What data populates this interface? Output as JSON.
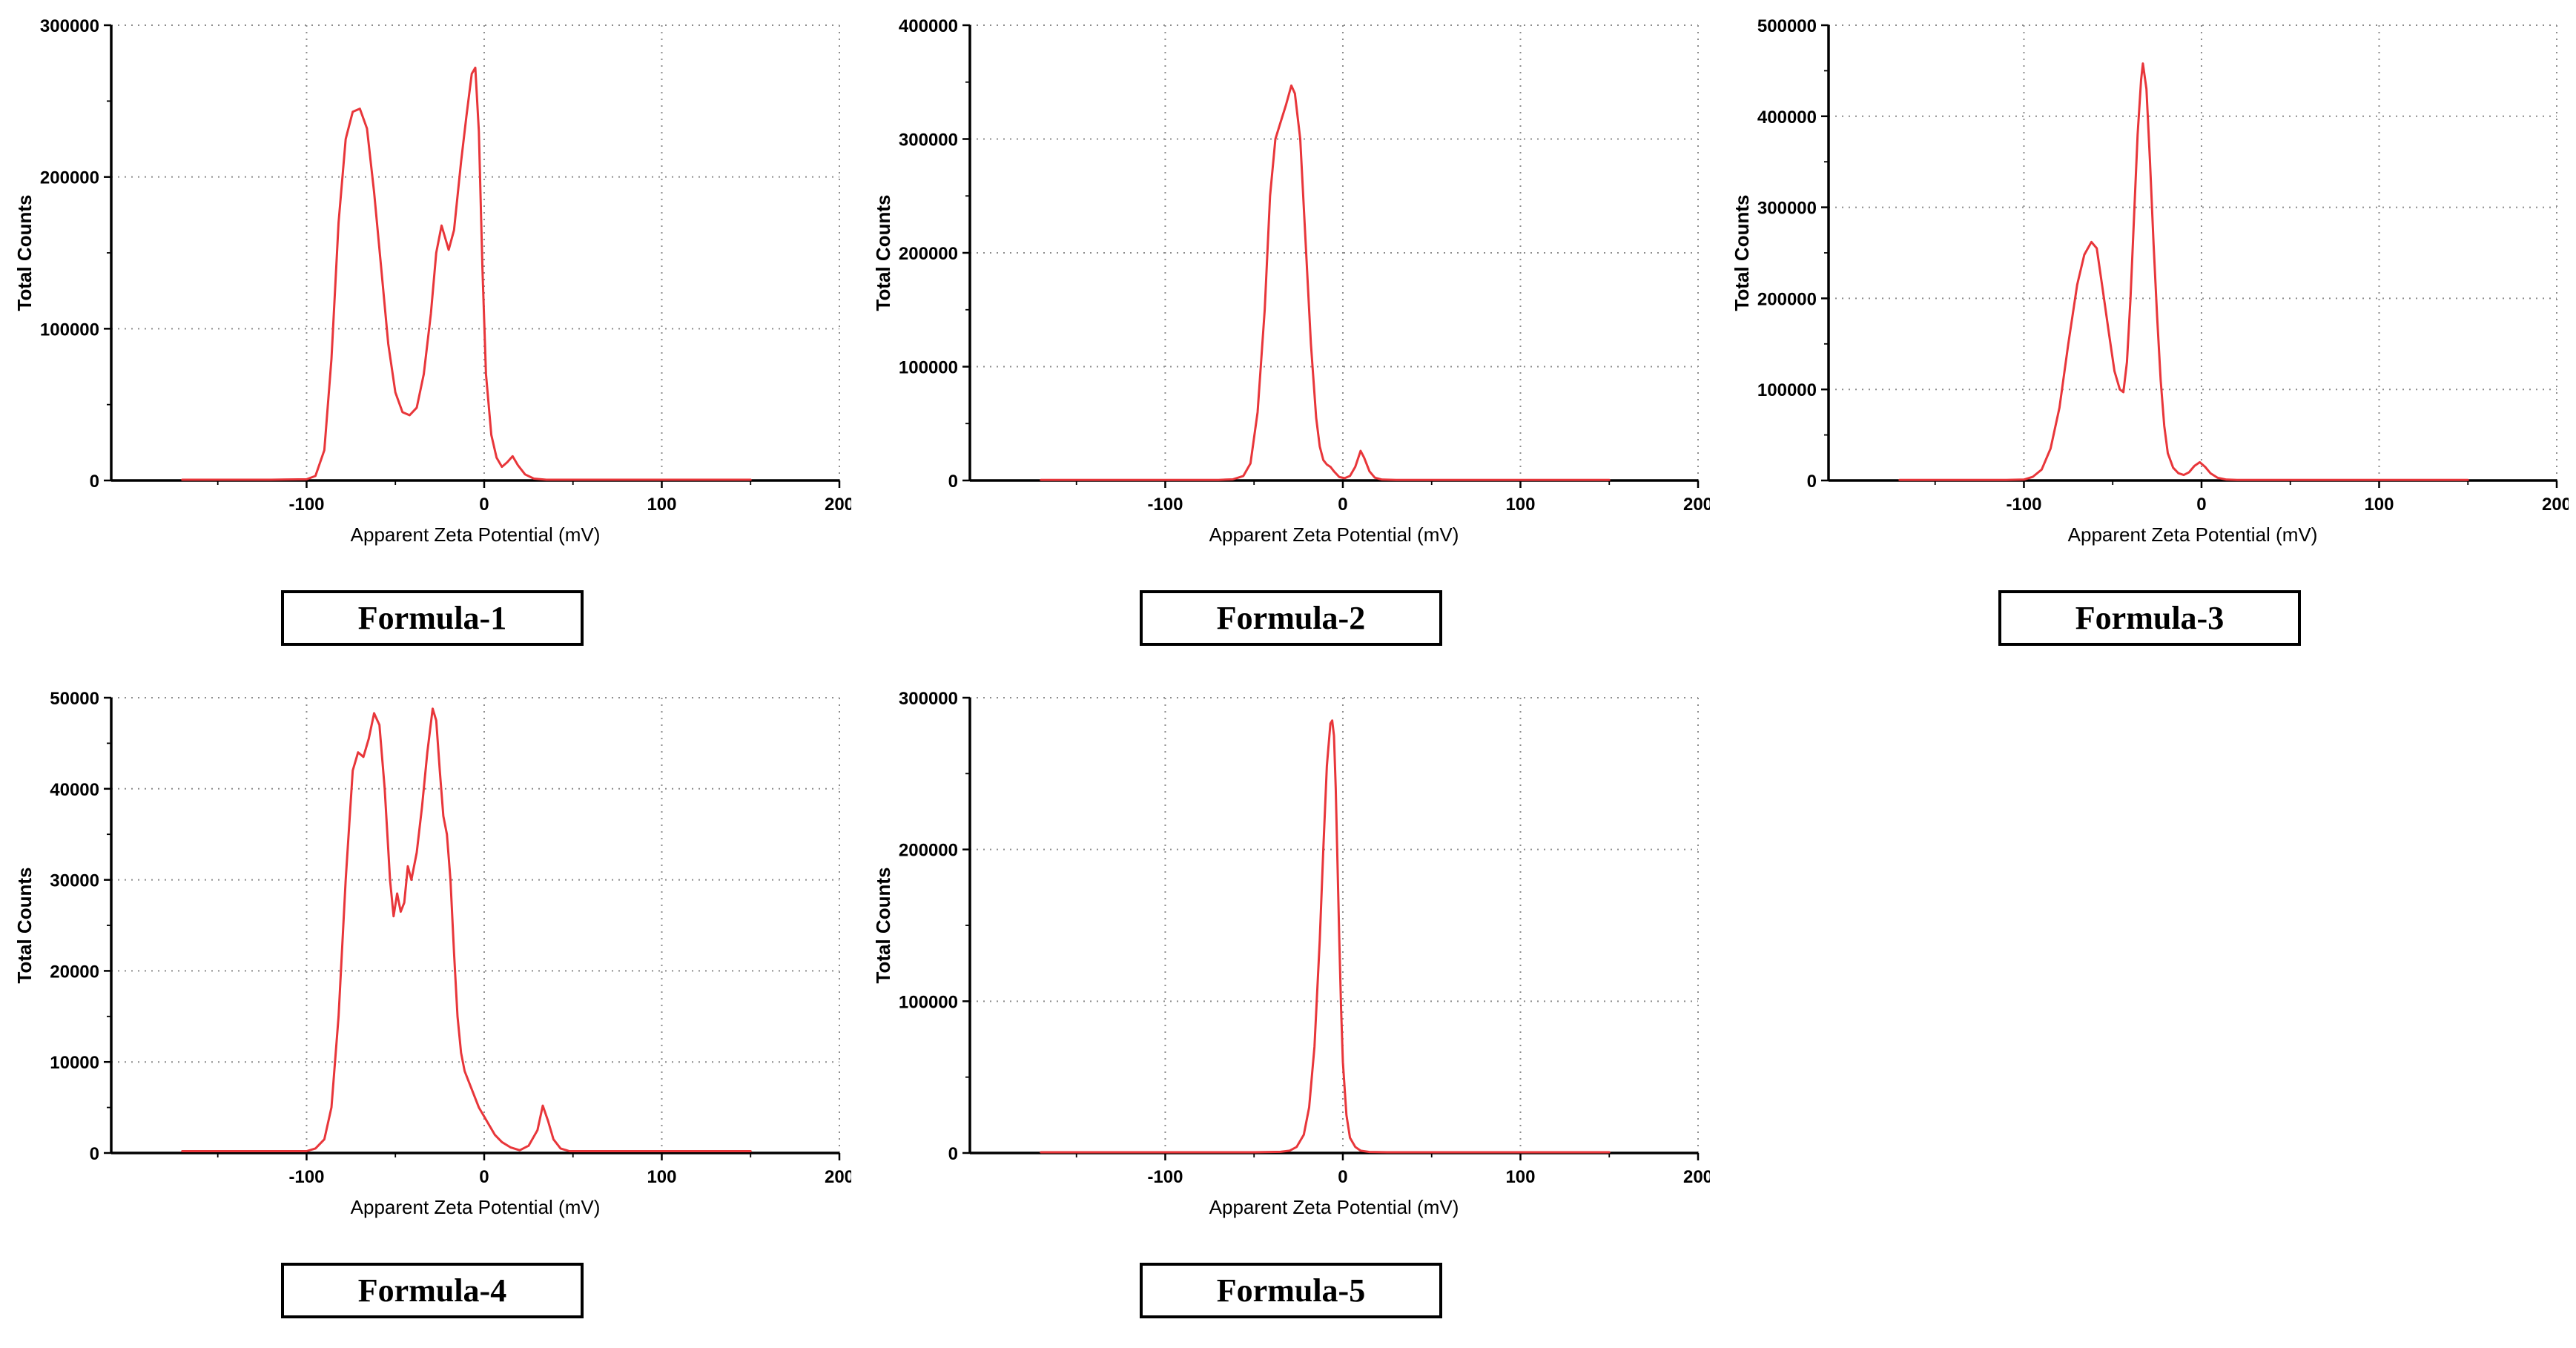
{
  "colors": {
    "series": "#e8363a",
    "grid": "#8c8c8c",
    "axis": "#000000",
    "caption_border": "#000000"
  },
  "chart_data": [
    {
      "type": "line",
      "label": "Formula-1",
      "xlabel": "Apparent Zeta Potential (mV)",
      "ylabel": "Total Counts",
      "xlim": [
        -210,
        200
      ],
      "ylim": [
        0,
        300000
      ],
      "xticks": [
        -100,
        0,
        100,
        200
      ],
      "yticks": [
        0,
        100000,
        200000,
        300000
      ],
      "x": [
        -170,
        -120,
        -100,
        -95,
        -90,
        -86,
        -82,
        -78,
        -74,
        -70,
        -66,
        -62,
        -58,
        -54,
        -50,
        -46,
        -42,
        -38,
        -34,
        -30,
        -27,
        -24,
        -22,
        -20,
        -17,
        -13,
        -10,
        -7,
        -5,
        -3,
        -1,
        1,
        4,
        7,
        10,
        13,
        16,
        19,
        23,
        28,
        35,
        60,
        100,
        150
      ],
      "y": [
        500,
        500,
        800,
        3000,
        20000,
        80000,
        170000,
        225000,
        243000,
        245000,
        232000,
        190000,
        140000,
        90000,
        58000,
        45000,
        43000,
        48000,
        70000,
        110000,
        150000,
        168000,
        160000,
        152000,
        165000,
        210000,
        240000,
        268000,
        272000,
        230000,
        140000,
        70000,
        30000,
        15000,
        9000,
        12000,
        16000,
        10000,
        4000,
        1200,
        500,
        500,
        500,
        500
      ]
    },
    {
      "type": "line",
      "label": "Formula-2",
      "xlabel": "Apparent Zeta Potential (mV)",
      "ylabel": "Total Counts",
      "xlim": [
        -210,
        200
      ],
      "ylim": [
        0,
        400000
      ],
      "xticks": [
        -100,
        0,
        100,
        200
      ],
      "yticks": [
        0,
        100000,
        200000,
        300000,
        400000
      ],
      "x": [
        -170,
        -100,
        -70,
        -62,
        -56,
        -52,
        -48,
        -44,
        -41,
        -38,
        -35,
        -32,
        -29,
        -27,
        -24,
        -21,
        -18,
        -15,
        -13,
        -11,
        -9,
        -7,
        -5,
        -2,
        1,
        4,
        7,
        10,
        12,
        15,
        18,
        22,
        30,
        100,
        150
      ],
      "y": [
        500,
        500,
        500,
        1000,
        4000,
        15000,
        60000,
        150000,
        250000,
        300000,
        315000,
        330000,
        347000,
        340000,
        300000,
        210000,
        120000,
        55000,
        30000,
        18000,
        14000,
        12000,
        8000,
        3000,
        2000,
        4000,
        12000,
        26000,
        20000,
        8000,
        2500,
        800,
        500,
        500,
        500
      ]
    },
    {
      "type": "line",
      "label": "Formula-3",
      "xlabel": "Apparent Zeta Potential (mV)",
      "ylabel": "Total Counts",
      "xlim": [
        -210,
        200
      ],
      "ylim": [
        0,
        500000
      ],
      "xticks": [
        -100,
        0,
        100,
        200
      ],
      "yticks": [
        0,
        100000,
        200000,
        300000,
        400000,
        500000
      ],
      "x": [
        -170,
        -110,
        -100,
        -95,
        -90,
        -85,
        -80,
        -75,
        -70,
        -66,
        -62,
        -59,
        -56,
        -52,
        -49,
        -46,
        -44,
        -42,
        -40,
        -38,
        -36,
        -34,
        -33,
        -31,
        -29,
        -27,
        -25,
        -23,
        -21,
        -19,
        -16,
        -13,
        -10,
        -7,
        -4,
        -1,
        2,
        5,
        9,
        14,
        20,
        100,
        150
      ],
      "y": [
        600,
        600,
        1000,
        4000,
        12000,
        35000,
        80000,
        150000,
        215000,
        248000,
        262000,
        255000,
        215000,
        160000,
        120000,
        100000,
        97000,
        130000,
        200000,
        290000,
        380000,
        440000,
        458000,
        430000,
        350000,
        260000,
        180000,
        110000,
        60000,
        30000,
        14000,
        8000,
        6000,
        9000,
        16000,
        20000,
        15000,
        8000,
        3000,
        1000,
        600,
        600,
        600
      ]
    },
    {
      "type": "line",
      "label": "Formula-4",
      "xlabel": "Apparent Zeta Potential (mV)",
      "ylabel": "Total Counts",
      "xlim": [
        -210,
        200
      ],
      "ylim": [
        0,
        50000
      ],
      "xticks": [
        -100,
        0,
        100,
        200
      ],
      "yticks": [
        0,
        10000,
        20000,
        30000,
        40000,
        50000
      ],
      "x": [
        -170,
        -100,
        -95,
        -90,
        -86,
        -82,
        -78,
        -74,
        -71,
        -68,
        -65,
        -62,
        -59,
        -56,
        -53,
        -51,
        -49,
        -47,
        -45,
        -43,
        -41,
        -38,
        -35,
        -32,
        -29,
        -27,
        -25,
        -23,
        -21,
        -19,
        -17,
        -15,
        -13,
        -11,
        -9,
        -6,
        -3,
        0,
        3,
        6,
        10,
        15,
        20,
        25,
        30,
        33,
        36,
        39,
        43,
        48,
        60,
        100,
        150
      ],
      "y": [
        200,
        200,
        500,
        1500,
        5000,
        15000,
        30000,
        42000,
        44000,
        43500,
        45500,
        48300,
        47000,
        40000,
        30000,
        26000,
        28500,
        26500,
        27500,
        31500,
        30000,
        33000,
        38000,
        44000,
        48800,
        47500,
        42000,
        37000,
        35000,
        30000,
        22000,
        15000,
        11000,
        9000,
        8000,
        6500,
        5000,
        4000,
        3000,
        2000,
        1200,
        600,
        300,
        800,
        2500,
        5200,
        3500,
        1500,
        500,
        200,
        200,
        200,
        200
      ]
    },
    {
      "type": "line",
      "label": "Formula-5",
      "xlabel": "Apparent Zeta Potential (mV)",
      "ylabel": "Total Counts",
      "xlim": [
        -210,
        200
      ],
      "ylim": [
        0,
        300000
      ],
      "xticks": [
        -100,
        0,
        100,
        200
      ],
      "yticks": [
        0,
        100000,
        200000,
        300000
      ],
      "x": [
        -170,
        -50,
        -35,
        -30,
        -26,
        -22,
        -19,
        -16,
        -13,
        -11,
        -9,
        -7,
        -6,
        -5,
        -4,
        -3,
        -2,
        -1,
        0,
        2,
        4,
        7,
        10,
        15,
        25,
        100,
        150
      ],
      "y": [
        500,
        500,
        800,
        1500,
        4000,
        12000,
        30000,
        70000,
        140000,
        200000,
        255000,
        283000,
        285000,
        275000,
        240000,
        190000,
        140000,
        95000,
        60000,
        25000,
        10000,
        4000,
        1500,
        700,
        500,
        500,
        500
      ]
    }
  ]
}
